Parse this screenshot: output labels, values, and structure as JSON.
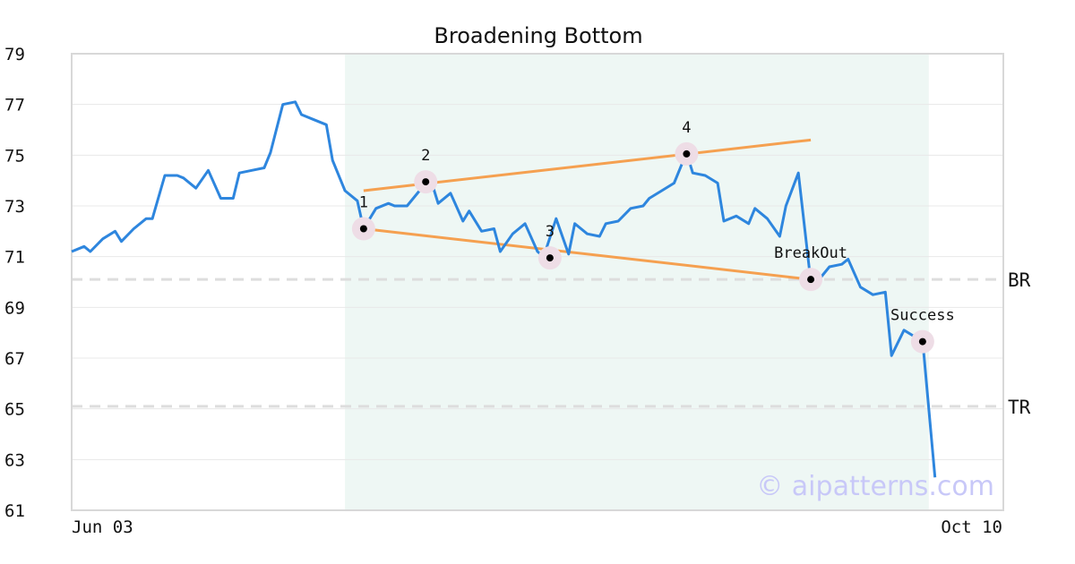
{
  "chart_data": {
    "type": "line",
    "title": "Broadening Bottom",
    "x_start_label": "Jun 03",
    "x_end_label": "Oct 10",
    "ylim": [
      61,
      79
    ],
    "yticks": [
      61,
      63,
      65,
      67,
      69,
      71,
      73,
      75,
      77,
      79
    ],
    "grid": true,
    "pattern_range": [
      44,
      138
    ],
    "series": [
      {
        "values": [
          71.2,
          71.4,
          71.2,
          71.7,
          72.0,
          71.6,
          72.1,
          72.5,
          72.5,
          74.2,
          74.2,
          74.1,
          73.7,
          74.4,
          73.3,
          73.3,
          74.3,
          74.4,
          74.5,
          75.1,
          77.0,
          77.1,
          76.6,
          76.4,
          76.2,
          74.8,
          73.6,
          73.2,
          72.1,
          72.9,
          73.1,
          73.0,
          73.0,
          73.6,
          73.9,
          73.1,
          73.5,
          72.4,
          72.8,
          72.0,
          72.1,
          71.2,
          71.9,
          72.3,
          71.2,
          71.0,
          72.5,
          71.1,
          72.3,
          71.9,
          71.8,
          72.3,
          72.4,
          72.9,
          73.0,
          73.3,
          73.6,
          73.9,
          75.1,
          74.3,
          74.2,
          73.9,
          72.4,
          72.6,
          72.3,
          72.9,
          72.5,
          71.8,
          73.0,
          74.3,
          70.0,
          70.0,
          70.6,
          70.7,
          70.9,
          69.8,
          69.5,
          69.6,
          67.1,
          68.1,
          67.8,
          67.7,
          62.3
        ],
        "x_index": [
          0,
          2,
          3,
          5,
          7,
          8,
          10,
          12,
          13,
          15,
          17,
          18,
          20,
          22,
          24,
          26,
          27,
          29,
          31,
          32,
          34,
          36,
          37,
          39,
          41,
          42,
          44,
          46,
          47,
          49,
          51,
          52,
          54,
          56,
          58,
          59,
          61,
          63,
          64,
          66,
          68,
          69,
          71,
          73,
          75,
          76,
          78,
          80,
          81,
          83,
          85,
          86,
          88,
          90,
          92,
          93,
          95,
          97,
          99,
          100,
          102,
          104,
          105,
          107,
          109,
          110,
          112,
          114,
          115,
          117,
          119,
          120,
          122,
          124,
          125,
          127,
          129,
          131,
          132,
          134,
          136,
          137,
          139
        ]
      }
    ],
    "pattern_lines": [
      {
        "from": [
          47,
          73.6
        ],
        "to": [
          119,
          75.6
        ],
        "color": "#f5a050"
      },
      {
        "from": [
          47,
          72.1
        ],
        "to": [
          119,
          70.1
        ],
        "color": "#f5a050"
      }
    ],
    "points": [
      {
        "label": "1",
        "x": 47,
        "y": 72.1
      },
      {
        "label": "2",
        "x": 57,
        "y": 73.95
      },
      {
        "label": "3",
        "x": 77,
        "y": 70.95
      },
      {
        "label": "4",
        "x": 99,
        "y": 75.05
      },
      {
        "label": "BreakOut",
        "x": 119,
        "y": 70.1
      },
      {
        "label": "Success",
        "x": 137,
        "y": 67.65
      }
    ],
    "reference_lines": [
      {
        "label": "BR",
        "y": 70.1
      },
      {
        "label": "TR",
        "y": 65.1
      }
    ],
    "colors": {
      "line": "#2e86de",
      "pattern": "#f5a050",
      "shade": "#eef7f4",
      "marker_halo": "#eedde6",
      "grid": "#e8e8e8",
      "ref": "#dddddd"
    },
    "watermark": "© aipatterns.com"
  }
}
